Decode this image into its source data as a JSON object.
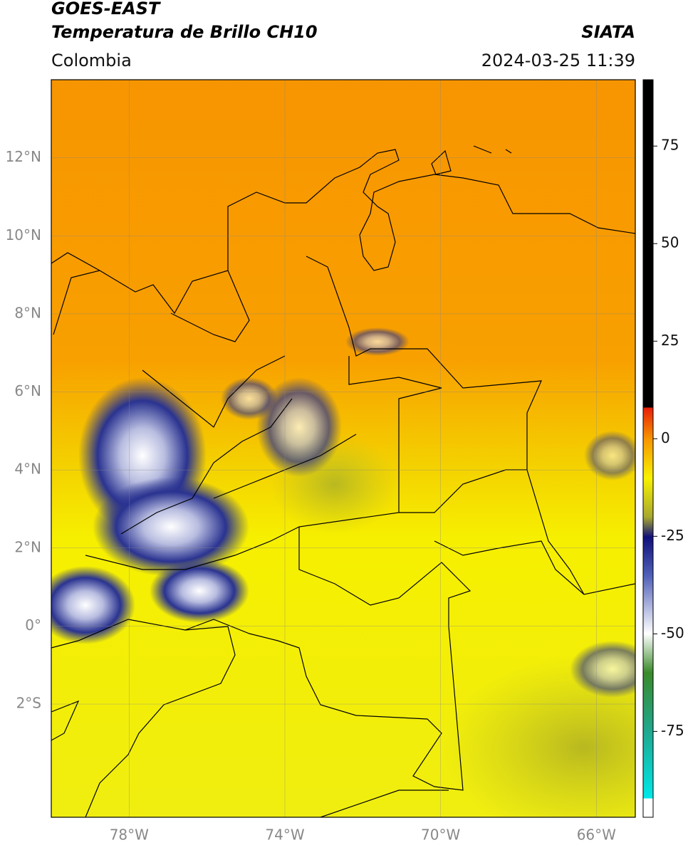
{
  "header": {
    "title": "GOES-EAST",
    "subtitle": "Temperatura de Brillo CH10",
    "region": "Colombia",
    "source": "SIATA",
    "datetime": "2024-03-25 11:39"
  },
  "map": {
    "xlim": [
      -80,
      -65
    ],
    "ylim": [
      -4.9,
      14
    ],
    "lat_ticks": [
      {
        "value": 12,
        "label": "12°N"
      },
      {
        "value": 10,
        "label": "10°N"
      },
      {
        "value": 8,
        "label": "8°N"
      },
      {
        "value": 6,
        "label": "6°N"
      },
      {
        "value": 4,
        "label": "4°N"
      },
      {
        "value": 2,
        "label": "2°N"
      },
      {
        "value": 0,
        "label": "0°"
      },
      {
        "value": -2,
        "label": "2°S"
      }
    ],
    "lon_ticks": [
      {
        "value": -78,
        "label": "78°W"
      },
      {
        "value": -74,
        "label": "74°W"
      },
      {
        "value": -70,
        "label": "70°W"
      },
      {
        "value": -66,
        "label": "66°W"
      }
    ]
  },
  "colorbar": {
    "lim": [
      -97,
      92
    ],
    "ticks": [
      75,
      50,
      25,
      0,
      -25,
      -50,
      -75
    ]
  }
}
